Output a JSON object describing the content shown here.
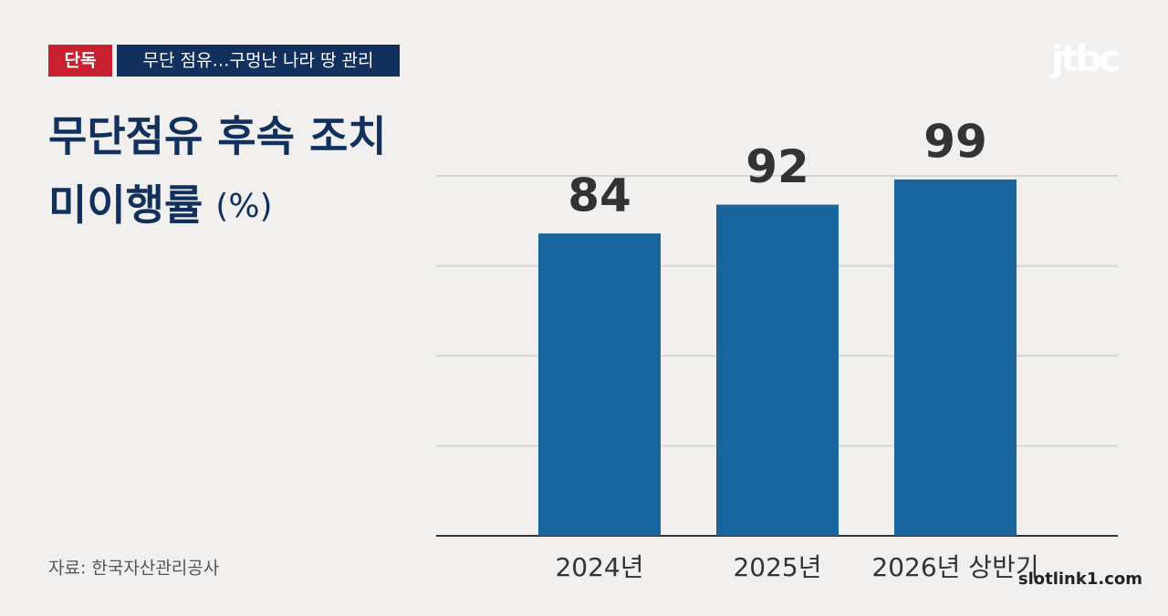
{
  "badge": "단독",
  "headline": "무단 점유…구멍난 나라 땅 관리",
  "logo": "jtbc",
  "watermark": "slotlink1.com",
  "chart_data": {
    "type": "bar",
    "title_lines": [
      "무단점유 후속 조치",
      "미이행률"
    ],
    "unit": "(%)",
    "source": "자료: 한국자산관리공사",
    "categories": [
      "2024년",
      "2025년",
      "2026년 상반기"
    ],
    "values": [
      84,
      92,
      99
    ],
    "color": "#19659f",
    "ylim": [
      0,
      100
    ],
    "yticks": [
      0,
      25,
      50,
      75,
      100
    ],
    "grid": true
  }
}
